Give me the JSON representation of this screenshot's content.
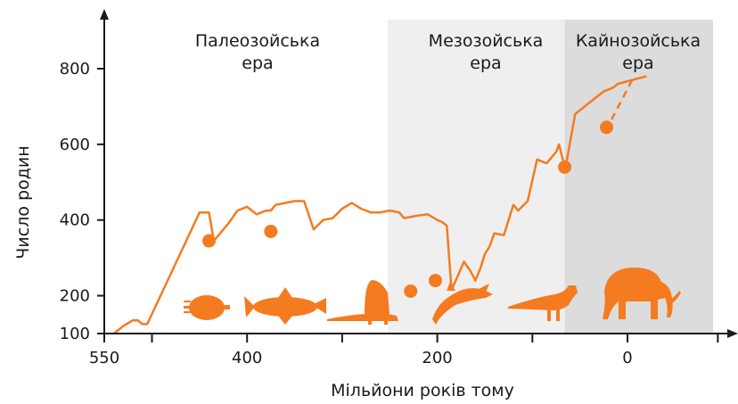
{
  "chart_data": {
    "type": "line",
    "xlabel": "Мільйони років тому",
    "ylabel": "Число родин",
    "x_reversed": true,
    "xlim": [
      550,
      -90
    ],
    "ylim": [
      100,
      860
    ],
    "x_ticks": [
      550,
      400,
      200,
      0
    ],
    "y_ticks": [
      100,
      200,
      400,
      600,
      800
    ],
    "minor_x_ticks": [
      500,
      300,
      100
    ],
    "colors": {
      "line": "#F47B20",
      "mesozoic_band": "#EFEFEF",
      "cenozoic_band": "#DCDCDC",
      "axis": "#1a1a1a"
    },
    "eras": [
      {
        "line1": "Палеозойська",
        "line2": "ера",
        "from": 550,
        "to": 252,
        "fill": "none"
      },
      {
        "line1": "Мезозойська",
        "line2": "ера",
        "from": 252,
        "to": 66,
        "fill": "#EFEFEF"
      },
      {
        "line1": "Кайнозойська",
        "line2": "ера",
        "from": 66,
        "to": -90,
        "fill": "#DCDCDC"
      }
    ],
    "series": [
      {
        "style": "solid",
        "points": [
          [
            540,
            100
          ],
          [
            530,
            120
          ],
          [
            520,
            135
          ],
          [
            515,
            135
          ],
          [
            510,
            125
          ],
          [
            505,
            125
          ],
          [
            450,
            420
          ],
          [
            440,
            420
          ],
          [
            435,
            345
          ],
          [
            420,
            390
          ],
          [
            410,
            425
          ],
          [
            400,
            435
          ],
          [
            390,
            415
          ],
          [
            380,
            425
          ],
          [
            375,
            425
          ],
          [
            370,
            440
          ],
          [
            360,
            445
          ],
          [
            350,
            450
          ],
          [
            340,
            450
          ],
          [
            330,
            375
          ],
          [
            320,
            400
          ],
          [
            310,
            405
          ],
          [
            300,
            430
          ],
          [
            290,
            445
          ],
          [
            280,
            430
          ],
          [
            270,
            420
          ],
          [
            260,
            420
          ],
          [
            250,
            425
          ],
          [
            240,
            420
          ],
          [
            235,
            405
          ],
          [
            220,
            412
          ],
          [
            210,
            415
          ],
          [
            200,
            400
          ],
          [
            195,
            395
          ],
          [
            190,
            385
          ],
          [
            185,
            215
          ],
          [
            178,
            255
          ],
          [
            172,
            290
          ],
          [
            165,
            265
          ],
          [
            160,
            240
          ],
          [
            155,
            270
          ],
          [
            150,
            310
          ],
          [
            145,
            330
          ],
          [
            140,
            365
          ],
          [
            130,
            360
          ],
          [
            125,
            400
          ],
          [
            120,
            440
          ],
          [
            115,
            425
          ],
          [
            105,
            450
          ],
          [
            95,
            560
          ],
          [
            85,
            550
          ],
          [
            75,
            580
          ],
          [
            72,
            600
          ],
          [
            68,
            560
          ],
          [
            65,
            540
          ],
          [
            55,
            680
          ],
          [
            45,
            700
          ],
          [
            35,
            720
          ],
          [
            25,
            740
          ],
          [
            15,
            750
          ],
          [
            10,
            760
          ],
          [
            -5,
            770
          ],
          [
            -20,
            780
          ]
        ]
      },
      {
        "style": "dashed",
        "points": [
          [
            -5,
            770
          ],
          [
            20,
            650
          ]
        ]
      }
    ],
    "extinction_markers": [
      {
        "x": 440,
        "y": 345
      },
      {
        "x": 375,
        "y": 370
      },
      {
        "x": 228,
        "y": 212
      },
      {
        "x": 202,
        "y": 240
      },
      {
        "x": 66,
        "y": 540
      },
      {
        "x": 22,
        "y": 645
      }
    ],
    "silhouettes": [
      "trilobite-icon",
      "fish-icon",
      "dimetrodon-icon",
      "ichthyosaur-icon",
      "dinosaur-icon",
      "elephant-icon"
    ]
  }
}
